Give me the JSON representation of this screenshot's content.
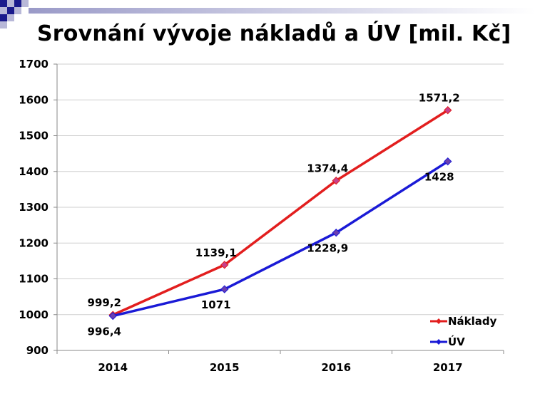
{
  "title": "Srovnání vývoje nákladů a ÚV [mil. Kč]",
  "colors": {
    "deco_dark": "#1a1a8c",
    "deco_light": "#b8b8d8",
    "grid": "#cfcfcf",
    "axis": "#000000"
  },
  "chart_data": {
    "type": "line",
    "title": "Srovnání vývoje nákladů a ÚV [mil. Kč]",
    "categories": [
      "2014",
      "2015",
      "2016",
      "2017"
    ],
    "ylim": [
      900,
      1700
    ],
    "yticks": [
      900,
      1000,
      1100,
      1200,
      1300,
      1400,
      1500,
      1600,
      1700
    ],
    "grid": true,
    "legend_position": "bottom-right",
    "series": [
      {
        "name": "Náklady",
        "color": "#e21e1e",
        "values": [
          999.2,
          1139.1,
          1374.4,
          1571.2
        ],
        "labels": [
          "999,2",
          "1139,1",
          "1374,4",
          "1571,2"
        ],
        "label_pos": [
          "above",
          "above",
          "above",
          "above"
        ]
      },
      {
        "name": "ÚV",
        "color": "#1a1ad6",
        "values": [
          996.4,
          1071,
          1228.9,
          1428
        ],
        "labels": [
          "996,4",
          "1071",
          "1228,9",
          "1428"
        ],
        "label_pos": [
          "below",
          "below",
          "below",
          "below"
        ]
      }
    ]
  }
}
